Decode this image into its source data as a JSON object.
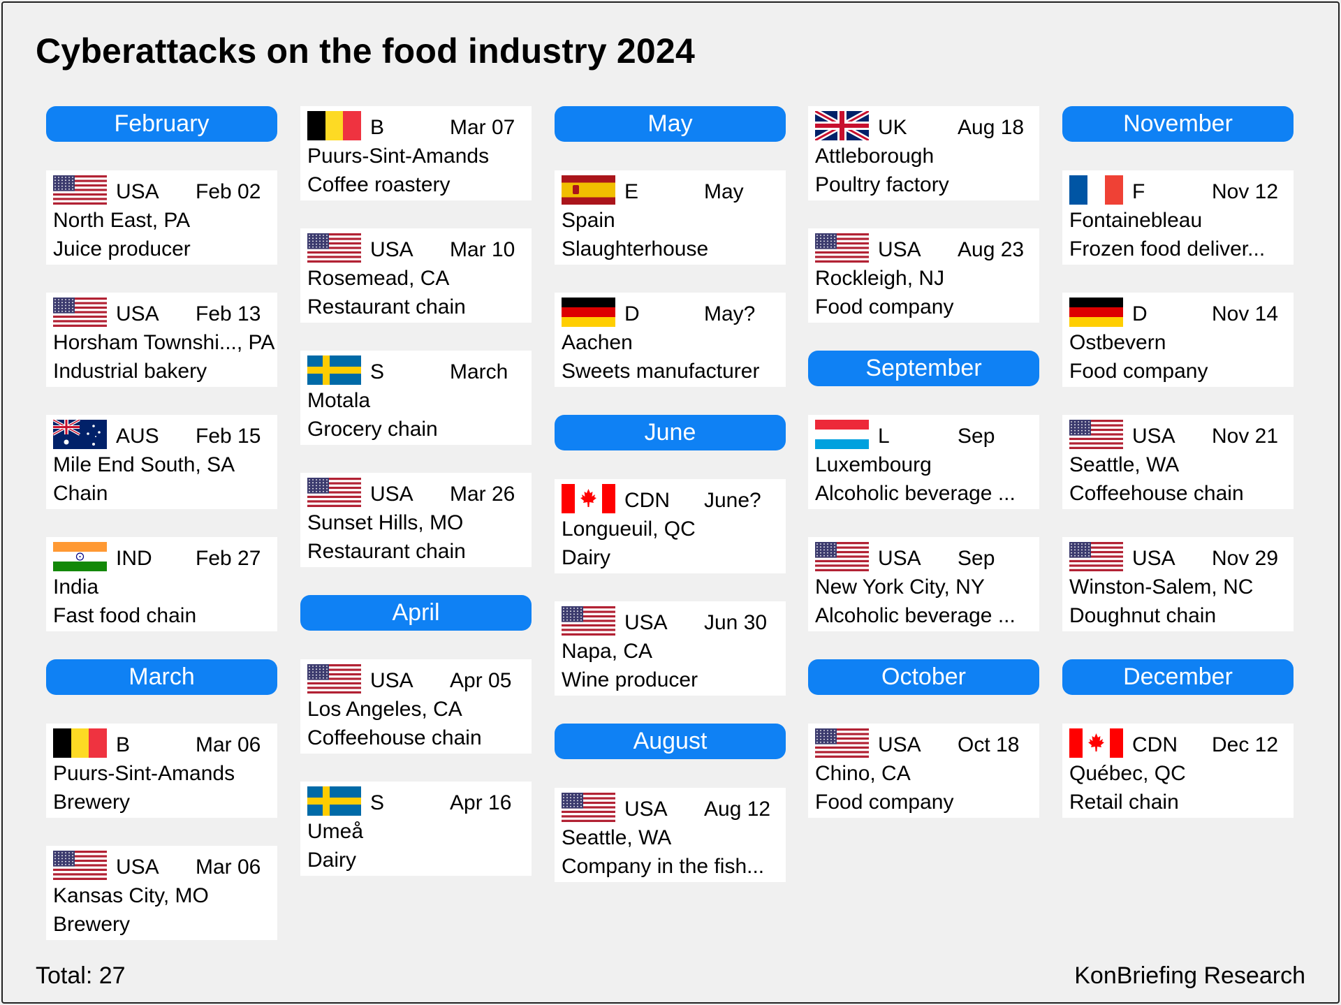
{
  "title": "Cyberattacks on the food industry 2024",
  "total": "Total: 27",
  "source": "KonBriefing Research",
  "colors": {
    "month_pill": "#0f81f4",
    "card_bg": "#ffffff",
    "page_bg": "#f0f0f0"
  },
  "columns": [
    {
      "items": [
        {
          "kind": "month",
          "label": "February"
        },
        {
          "kind": "entry",
          "flag": "us-flag",
          "code": "USA",
          "date": "Feb 02",
          "place": "North East, PA",
          "sector": "Juice producer"
        },
        {
          "kind": "entry",
          "flag": "us-flag",
          "code": "USA",
          "date": "Feb 13",
          "place": "Horsham Townshi..., PA",
          "sector": "Industrial bakery"
        },
        {
          "kind": "entry",
          "flag": "au-flag",
          "code": "AUS",
          "date": "Feb 15",
          "place": "Mile End South, SA",
          "sector": "Chain"
        },
        {
          "kind": "entry",
          "flag": "in-flag",
          "code": "IND",
          "date": "Feb 27",
          "place": "India",
          "sector": "Fast food chain"
        },
        {
          "kind": "month",
          "label": "March"
        },
        {
          "kind": "entry",
          "flag": "be-flag",
          "code": "B",
          "date": "Mar 06",
          "place": "Puurs-Sint-Amands",
          "sector": "Brewery"
        },
        {
          "kind": "entry",
          "flag": "us-flag",
          "code": "USA",
          "date": "Mar 06",
          "place": "Kansas City, MO",
          "sector": "Brewery"
        }
      ]
    },
    {
      "items": [
        {
          "kind": "entry",
          "flag": "be-flag",
          "code": "B",
          "date": "Mar 07",
          "place": "Puurs-Sint-Amands",
          "sector": "Coffee roastery"
        },
        {
          "kind": "entry",
          "flag": "us-flag",
          "code": "USA",
          "date": "Mar 10",
          "place": "Rosemead, CA",
          "sector": "Restaurant chain"
        },
        {
          "kind": "entry",
          "flag": "se-flag",
          "code": "S",
          "date": "March",
          "place": "Motala",
          "sector": "Grocery chain"
        },
        {
          "kind": "entry",
          "flag": "us-flag",
          "code": "USA",
          "date": "Mar 26",
          "place": "Sunset Hills, MO",
          "sector": "Restaurant chain"
        },
        {
          "kind": "month",
          "label": "April"
        },
        {
          "kind": "entry",
          "flag": "us-flag",
          "code": "USA",
          "date": "Apr 05",
          "place": "Los Angeles, CA",
          "sector": "Coffeehouse chain"
        },
        {
          "kind": "entry",
          "flag": "se-flag",
          "code": "S",
          "date": "Apr 16",
          "place": "Umeå",
          "sector": "Dairy"
        }
      ]
    },
    {
      "items": [
        {
          "kind": "month",
          "label": "May"
        },
        {
          "kind": "entry",
          "flag": "es-flag",
          "code": "E",
          "date": "May",
          "place": "Spain",
          "sector": "Slaughterhouse"
        },
        {
          "kind": "entry",
          "flag": "de-flag",
          "code": "D",
          "date": "May?",
          "place": "Aachen",
          "sector": "Sweets manufacturer"
        },
        {
          "kind": "month",
          "label": "June"
        },
        {
          "kind": "entry",
          "flag": "ca-flag",
          "code": "CDN",
          "date": "June?",
          "place": "Longueuil, QC",
          "sector": "Dairy"
        },
        {
          "kind": "entry",
          "flag": "us-flag",
          "code": "USA",
          "date": "Jun 30",
          "place": "Napa, CA",
          "sector": "Wine producer"
        },
        {
          "kind": "month",
          "label": "August"
        },
        {
          "kind": "entry",
          "flag": "us-flag",
          "code": "USA",
          "date": "Aug 12",
          "place": "Seattle, WA",
          "sector": "Company in the fish..."
        }
      ]
    },
    {
      "items": [
        {
          "kind": "entry",
          "flag": "uk-flag",
          "code": "UK",
          "date": "Aug 18",
          "place": "Attleborough",
          "sector": "Poultry factory"
        },
        {
          "kind": "entry",
          "flag": "us-flag",
          "code": "USA",
          "date": "Aug 23",
          "place": "Rockleigh, NJ",
          "sector": "Food company"
        },
        {
          "kind": "month",
          "label": "September"
        },
        {
          "kind": "entry",
          "flag": "lu-flag",
          "code": "L",
          "date": "Sep",
          "place": "Luxembourg",
          "sector": "Alcoholic beverage ..."
        },
        {
          "kind": "entry",
          "flag": "us-flag",
          "code": "USA",
          "date": "Sep",
          "place": "New York City, NY",
          "sector": "Alcoholic beverage ..."
        },
        {
          "kind": "month",
          "label": "October"
        },
        {
          "kind": "entry",
          "flag": "us-flag",
          "code": "USA",
          "date": "Oct 18",
          "place": "Chino, CA",
          "sector": "Food company"
        }
      ]
    },
    {
      "items": [
        {
          "kind": "month",
          "label": "November"
        },
        {
          "kind": "entry",
          "flag": "fr-flag",
          "code": "F",
          "date": "Nov 12",
          "place": "Fontainebleau",
          "sector": "Frozen food deliver..."
        },
        {
          "kind": "entry",
          "flag": "de-flag",
          "code": "D",
          "date": "Nov 14",
          "place": "Ostbevern",
          "sector": "Food company"
        },
        {
          "kind": "entry",
          "flag": "us-flag",
          "code": "USA",
          "date": "Nov 21",
          "place": "Seattle, WA",
          "sector": "Coffeehouse chain"
        },
        {
          "kind": "entry",
          "flag": "us-flag",
          "code": "USA",
          "date": "Nov 29",
          "place": "Winston-Salem, NC",
          "sector": "Doughnut chain"
        },
        {
          "kind": "month",
          "label": "December"
        },
        {
          "kind": "entry",
          "flag": "ca-flag",
          "code": "CDN",
          "date": "Dec 12",
          "place": "Québec, QC",
          "sector": "Retail chain"
        }
      ]
    }
  ]
}
